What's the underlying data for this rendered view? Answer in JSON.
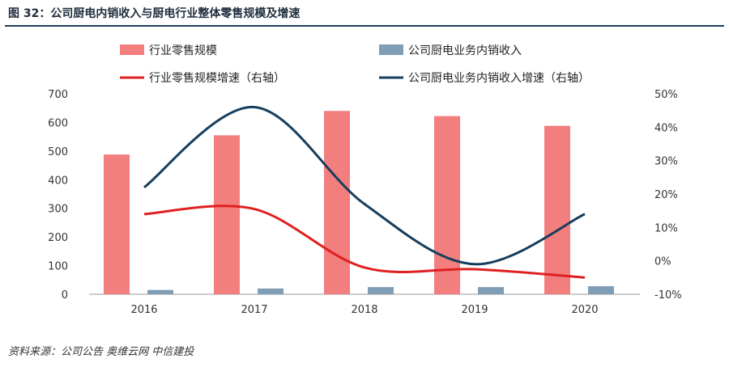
{
  "header": {
    "title": "图 32：公司厨电内销收入与厨电行业整体零售规模及增速"
  },
  "footer": {
    "source": "资料来源：公司公告  奥维云网  中信建投"
  },
  "colors": {
    "bar_industry": "#f37e7e",
    "bar_company": "#7f9db5",
    "line_industry": "#e02020",
    "line_company": "#163e5d"
  },
  "chart_data": {
    "type": "bar",
    "categories": [
      "2016",
      "2017",
      "2018",
      "2019",
      "2020"
    ],
    "series": [
      {
        "name": "行业零售规模",
        "kind": "bar",
        "axis": "left",
        "values": [
          488,
          555,
          640,
          622,
          588
        ]
      },
      {
        "name": "公司厨电业务内销收入",
        "kind": "bar",
        "axis": "left",
        "values": [
          15,
          20,
          25,
          25,
          28
        ]
      },
      {
        "name": "行业零售规模增速（右轴）",
        "kind": "line",
        "axis": "right",
        "values": [
          14,
          15.5,
          -2,
          -2.5,
          -5
        ]
      },
      {
        "name": "公司厨电业务内销收入增速（右轴）",
        "kind": "line",
        "axis": "right",
        "values": [
          22,
          46,
          17,
          -1,
          14
        ]
      }
    ],
    "y_left": {
      "min": 0,
      "max": 700,
      "ticks": [
        "0",
        "100",
        "200",
        "300",
        "400",
        "500",
        "600",
        "700"
      ]
    },
    "y_right": {
      "min": -10,
      "max": 50,
      "ticks": [
        "-10%",
        "0%",
        "10%",
        "20%",
        "30%",
        "40%",
        "50%"
      ]
    },
    "legend_position": "top"
  }
}
